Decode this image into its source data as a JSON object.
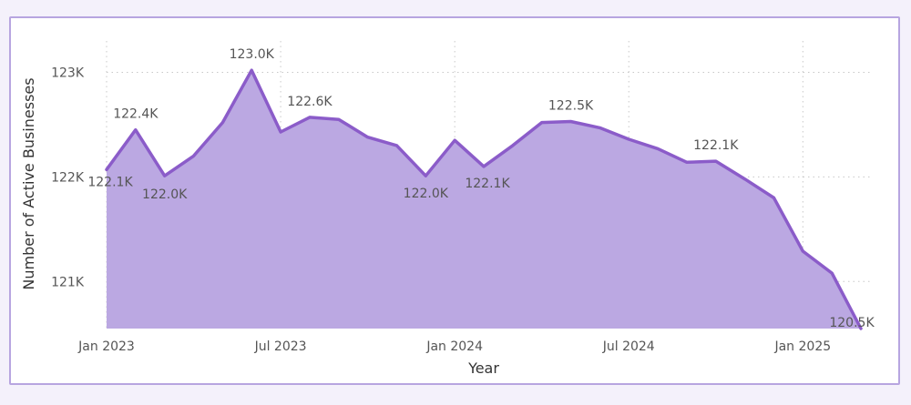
{
  "chart_data": {
    "type": "area",
    "xlabel": "Year",
    "ylabel": "Number of Active Businesses",
    "ylim": [
      120.55,
      123.3
    ],
    "y_unit_suffix": "K",
    "y_ticks": [
      {
        "value": 121,
        "label": "121K"
      },
      {
        "value": 122,
        "label": "122K"
      },
      {
        "value": 123,
        "label": "123K"
      }
    ],
    "x_ticks": [
      {
        "index": 0,
        "label": "Jan 2023"
      },
      {
        "index": 6,
        "label": "Jul 2023"
      },
      {
        "index": 12,
        "label": "Jan 2024"
      },
      {
        "index": 18,
        "label": "Jul 2024"
      },
      {
        "index": 24,
        "label": "Jan 2025"
      }
    ],
    "x": [
      "Jan 2023",
      "Feb 2023",
      "Mar 2023",
      "Apr 2023",
      "May 2023",
      "Jun 2023",
      "Jul 2023",
      "Aug 2023",
      "Sep 2023",
      "Oct 2023",
      "Nov 2023",
      "Dec 2023",
      "Jan 2024",
      "Feb 2024",
      "Mar 2024",
      "Apr 2024",
      "May 2024",
      "Jun 2024",
      "Jul 2024",
      "Aug 2024",
      "Sep 2024",
      "Oct 2024",
      "Nov 2024",
      "Dec 2024",
      "Jan 2025",
      "Feb 2025",
      "Mar 2025"
    ],
    "series": [
      {
        "values": [
          122.07,
          122.45,
          122.01,
          122.2,
          122.52,
          123.02,
          122.43,
          122.57,
          122.55,
          122.38,
          122.3,
          122.01,
          122.35,
          122.1,
          122.3,
          122.52,
          122.53,
          122.47,
          122.36,
          122.27,
          122.14,
          122.15,
          121.98,
          121.8,
          121.29,
          121.08,
          120.55
        ]
      }
    ],
    "data_labels": [
      {
        "index": 0,
        "text": "122.1K"
      },
      {
        "index": 1,
        "text": "122.4K"
      },
      {
        "index": 2,
        "text": "122.0K"
      },
      {
        "index": 5,
        "text": "123.0K"
      },
      {
        "index": 7,
        "text": "122.6K"
      },
      {
        "index": 11,
        "text": "122.0K"
      },
      {
        "index": 13,
        "text": "122.1K"
      },
      {
        "index": 16,
        "text": "122.5K"
      },
      {
        "index": 21,
        "text": "122.1K"
      },
      {
        "index": 26,
        "text": "120.5K"
      }
    ],
    "grid": true,
    "colors": {
      "fill": "#bba8e2",
      "line": "#8b5cc9",
      "grid": "#c8c8c8"
    }
  }
}
